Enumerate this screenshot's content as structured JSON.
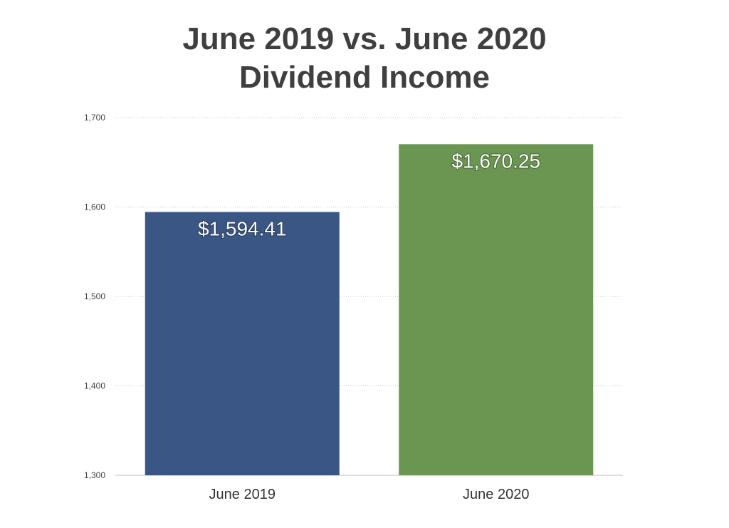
{
  "title": {
    "line1": "June 2019 vs. June 2020",
    "line2": "Dividend Income"
  },
  "chart_data": {
    "type": "bar",
    "title": "June 2019 vs. June 2020 Dividend Income",
    "xlabel": "",
    "ylabel": "",
    "categories": [
      "June 2019",
      "June 2020"
    ],
    "values": [
      1594.41,
      1670.25
    ],
    "data_labels": [
      "$1,594.41",
      "$1,670.25"
    ],
    "colors": [
      "#3a5684",
      "#6a9651"
    ],
    "ylim": [
      1300,
      1700
    ],
    "yticks": [
      1300,
      1400,
      1500,
      1600,
      1700
    ],
    "ytick_labels": [
      "1,300",
      "1,400",
      "1,500",
      "1,600",
      "1,700"
    ],
    "grid": true,
    "grid_style": "dotted",
    "legend": "none"
  }
}
